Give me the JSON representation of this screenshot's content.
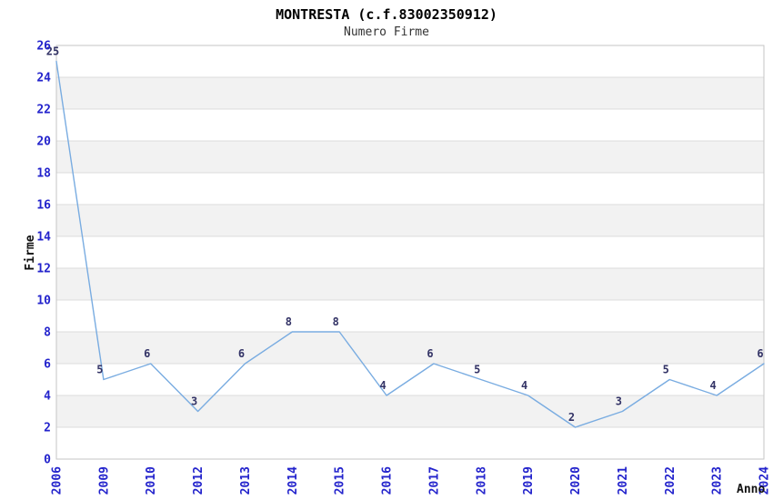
{
  "chart_data": {
    "type": "line",
    "title": "MONTRESTA (c.f.83002350912)",
    "subtitle": "Numero Firme",
    "xlabel": "Anno",
    "ylabel": "Firme",
    "x": [
      "2006",
      "2009",
      "2010",
      "2012",
      "2013",
      "2014",
      "2015",
      "2016",
      "2017",
      "2018",
      "2019",
      "2020",
      "2021",
      "2022",
      "2023",
      "2024"
    ],
    "series": [
      {
        "name": "Numero Firme",
        "values": [
          25,
          5,
          6,
          3,
          6,
          8,
          8,
          4,
          6,
          5,
          4,
          2,
          3,
          5,
          4,
          6
        ]
      }
    ],
    "ylim": [
      0,
      26
    ],
    "ytick_step": 2,
    "x_tick_rotation": -90,
    "show_point_labels": true,
    "legend": "none",
    "grid": "horizontal",
    "background_bands": "alternating-2-unit",
    "colors": {
      "line": "#79ace1",
      "band": "#f2f2f2",
      "gridline": "#dcdcdc",
      "plot_border": "#c6c6c6",
      "tick_label": "#2323cc",
      "point_label": "#333366",
      "title": "#000000",
      "subtitle": "#333333"
    }
  }
}
